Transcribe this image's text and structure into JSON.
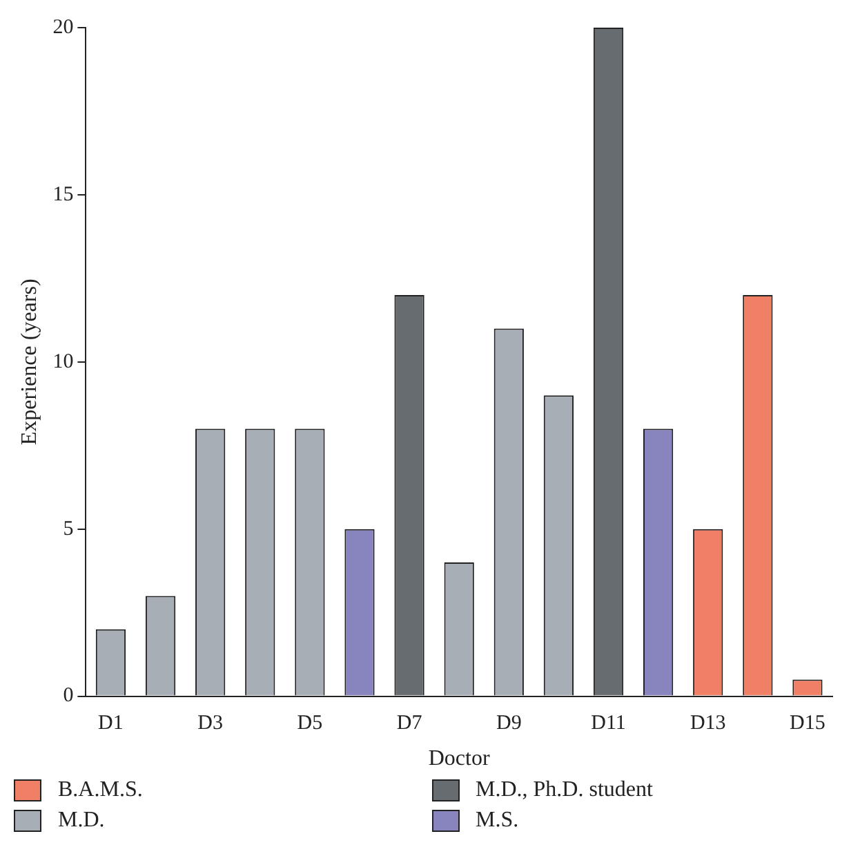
{
  "chart_data": {
    "type": "bar",
    "xlabel": "Doctor",
    "ylabel": "Experience (years)",
    "categories": [
      "D1",
      null,
      "D3",
      null,
      "D5",
      null,
      "D7",
      null,
      "D9",
      null,
      "D11",
      null,
      "D13",
      null,
      "D15"
    ],
    "series": [
      {
        "name": "B.A.M.S.",
        "color": "#f08065",
        "values": [
          null,
          null,
          null,
          null,
          null,
          null,
          null,
          null,
          null,
          null,
          null,
          null,
          5,
          12,
          0.5
        ]
      },
      {
        "name": "M.D.",
        "color": "#a8aeb5",
        "values": [
          2,
          3,
          8,
          8,
          8,
          null,
          null,
          4,
          11,
          9,
          null,
          null,
          null,
          null,
          null
        ]
      },
      {
        "name": "M.D., Ph.D. student",
        "color": "#666c6f",
        "values": [
          null,
          null,
          null,
          null,
          null,
          null,
          12,
          null,
          null,
          null,
          20,
          null,
          null,
          null,
          null
        ]
      },
      {
        "name": "M.S.",
        "color": "#8884be",
        "values": [
          null,
          null,
          null,
          null,
          null,
          5,
          null,
          null,
          null,
          null,
          null,
          8,
          null,
          null,
          null
        ]
      }
    ],
    "ylim": [
      0,
      20
    ],
    "yticks": [
      0,
      5,
      10,
      15,
      20
    ],
    "grid": false,
    "legend": "bottom"
  }
}
